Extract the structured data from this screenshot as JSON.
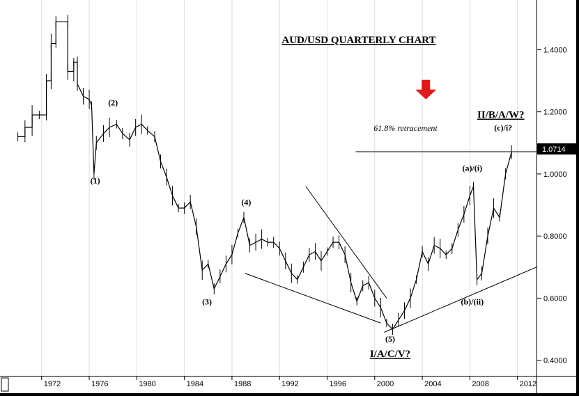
{
  "chart_data": {
    "type": "ohlc",
    "title": "AUD/USD QUARTERLY CHART",
    "xlabel": "",
    "ylabel": "",
    "xlim": [
      1968.5,
      2013.6
    ],
    "ylim": [
      0.35,
      1.56
    ],
    "x_ticks": [
      "1972",
      "1976",
      "1980",
      "1984",
      "1988",
      "1992",
      "1996",
      "2000",
      "2004",
      "2008",
      "2012"
    ],
    "y_ticks": [
      "0.4000",
      "0.6000",
      "0.8000",
      "1.0000",
      "1.2000",
      "1.4000"
    ],
    "last_price": "1.0714",
    "retracement": {
      "label": "61.8% retracement",
      "level": 1.0714
    },
    "series_points": [
      {
        "x": 1970.0,
        "y": 1.12
      },
      {
        "x": 1970.6,
        "y": 1.12
      },
      {
        "x": 1970.6,
        "y": 1.15
      },
      {
        "x": 1971.2,
        "y": 1.15
      },
      {
        "x": 1971.2,
        "y": 1.19
      },
      {
        "x": 1971.8,
        "y": 1.19
      },
      {
        "x": 1972.4,
        "y": 1.19
      },
      {
        "x": 1972.4,
        "y": 1.3
      },
      {
        "x": 1972.8,
        "y": 1.3
      },
      {
        "x": 1972.8,
        "y": 1.42
      },
      {
        "x": 1973.2,
        "y": 1.42
      },
      {
        "x": 1973.2,
        "y": 1.49
      },
      {
        "x": 1974.2,
        "y": 1.49
      },
      {
        "x": 1974.2,
        "y": 1.33
      },
      {
        "x": 1974.7,
        "y": 1.33
      },
      {
        "x": 1974.7,
        "y": 1.36
      },
      {
        "x": 1975.0,
        "y": 1.36
      },
      {
        "x": 1975.0,
        "y": 1.29
      },
      {
        "x": 1975.5,
        "y": 1.25
      },
      {
        "x": 1976.0,
        "y": 1.24
      },
      {
        "x": 1976.2,
        "y": 1.22
      },
      {
        "x": 1976.4,
        "y": 1.0
      },
      {
        "x": 1976.6,
        "y": 1.1
      },
      {
        "x": 1977.2,
        "y": 1.13
      },
      {
        "x": 1977.7,
        "y": 1.15
      },
      {
        "x": 1978.3,
        "y": 1.16
      },
      {
        "x": 1978.8,
        "y": 1.13
      },
      {
        "x": 1979.4,
        "y": 1.11
      },
      {
        "x": 1979.9,
        "y": 1.15
      },
      {
        "x": 1980.4,
        "y": 1.16
      },
      {
        "x": 1980.9,
        "y": 1.14
      },
      {
        "x": 1981.5,
        "y": 1.12
      },
      {
        "x": 1982.0,
        "y": 1.04
      },
      {
        "x": 1982.5,
        "y": 0.99
      },
      {
        "x": 1983.0,
        "y": 0.93
      },
      {
        "x": 1983.5,
        "y": 0.89
      },
      {
        "x": 1984.0,
        "y": 0.89
      },
      {
        "x": 1984.5,
        "y": 0.91
      },
      {
        "x": 1985.0,
        "y": 0.83
      },
      {
        "x": 1985.5,
        "y": 0.69
      },
      {
        "x": 1986.0,
        "y": 0.71
      },
      {
        "x": 1986.5,
        "y": 0.63
      },
      {
        "x": 1987.0,
        "y": 0.67
      },
      {
        "x": 1987.5,
        "y": 0.71
      },
      {
        "x": 1988.0,
        "y": 0.74
      },
      {
        "x": 1988.5,
        "y": 0.81
      },
      {
        "x": 1989.0,
        "y": 0.86
      },
      {
        "x": 1989.5,
        "y": 0.77
      },
      {
        "x": 1990.0,
        "y": 0.78
      },
      {
        "x": 1990.5,
        "y": 0.79
      },
      {
        "x": 1991.0,
        "y": 0.78
      },
      {
        "x": 1991.5,
        "y": 0.78
      },
      {
        "x": 1992.0,
        "y": 0.76
      },
      {
        "x": 1992.5,
        "y": 0.72
      },
      {
        "x": 1993.0,
        "y": 0.68
      },
      {
        "x": 1993.5,
        "y": 0.66
      },
      {
        "x": 1994.0,
        "y": 0.7
      },
      {
        "x": 1994.5,
        "y": 0.74
      },
      {
        "x": 1995.0,
        "y": 0.75
      },
      {
        "x": 1995.5,
        "y": 0.72
      },
      {
        "x": 1996.0,
        "y": 0.75
      },
      {
        "x": 1996.5,
        "y": 0.78
      },
      {
        "x": 1997.0,
        "y": 0.78
      },
      {
        "x": 1997.5,
        "y": 0.74
      },
      {
        "x": 1998.0,
        "y": 0.65
      },
      {
        "x": 1998.5,
        "y": 0.59
      },
      {
        "x": 1999.0,
        "y": 0.64
      },
      {
        "x": 1999.5,
        "y": 0.65
      },
      {
        "x": 2000.0,
        "y": 0.6
      },
      {
        "x": 2000.5,
        "y": 0.57
      },
      {
        "x": 2001.0,
        "y": 0.52
      },
      {
        "x": 2001.5,
        "y": 0.5
      },
      {
        "x": 2002.0,
        "y": 0.53
      },
      {
        "x": 2002.5,
        "y": 0.56
      },
      {
        "x": 2003.0,
        "y": 0.6
      },
      {
        "x": 2003.5,
        "y": 0.66
      },
      {
        "x": 2004.0,
        "y": 0.75
      },
      {
        "x": 2004.5,
        "y": 0.71
      },
      {
        "x": 2005.0,
        "y": 0.77
      },
      {
        "x": 2005.5,
        "y": 0.76
      },
      {
        "x": 2006.0,
        "y": 0.74
      },
      {
        "x": 2006.5,
        "y": 0.76
      },
      {
        "x": 2007.0,
        "y": 0.82
      },
      {
        "x": 2007.5,
        "y": 0.87
      },
      {
        "x": 2008.0,
        "y": 0.93
      },
      {
        "x": 2008.3,
        "y": 0.96
      },
      {
        "x": 2008.6,
        "y": 0.66
      },
      {
        "x": 2009.0,
        "y": 0.68
      },
      {
        "x": 2009.5,
        "y": 0.8
      },
      {
        "x": 2010.0,
        "y": 0.89
      },
      {
        "x": 2010.5,
        "y": 0.86
      },
      {
        "x": 2011.0,
        "y": 1.0
      },
      {
        "x": 2011.5,
        "y": 1.07
      }
    ],
    "trendlines": [
      {
        "x1": 1989.1,
        "y1": 0.68,
        "x2": 2000.5,
        "y2": 0.52
      },
      {
        "x1": 1994.2,
        "y1": 0.96,
        "x2": 2001.0,
        "y2": 0.6
      },
      {
        "x1": 2000.8,
        "y1": 0.49,
        "x2": 2013.6,
        "y2": 0.7
      }
    ],
    "annotations": [
      {
        "text": "(1)",
        "x": 1976.5,
        "y": 0.97
      },
      {
        "text": "(2)",
        "x": 1978.0,
        "y": 1.22
      },
      {
        "text": "(3)",
        "x": 1985.9,
        "y": 0.58
      },
      {
        "text": "(4)",
        "x": 1989.2,
        "y": 0.9
      },
      {
        "text": "(5)",
        "x": 2001.3,
        "y": 0.46
      },
      {
        "text": "(a)/(i)",
        "x": 2008.2,
        "y": 1.01
      },
      {
        "text": "(b)/(ii)",
        "x": 2008.2,
        "y": 0.58
      },
      {
        "text": "(c)/i?",
        "x": 2010.8,
        "y": 1.14
      }
    ],
    "big_labels": [
      {
        "text": "I/A/C/V?",
        "x": 2001.3,
        "y": 0.41
      },
      {
        "text": "II/B/A/W?",
        "x": 2010.6,
        "y": 1.18
      }
    ],
    "arrow": {
      "color": "#e01818",
      "x": 2004.3,
      "y": 1.24
    }
  }
}
